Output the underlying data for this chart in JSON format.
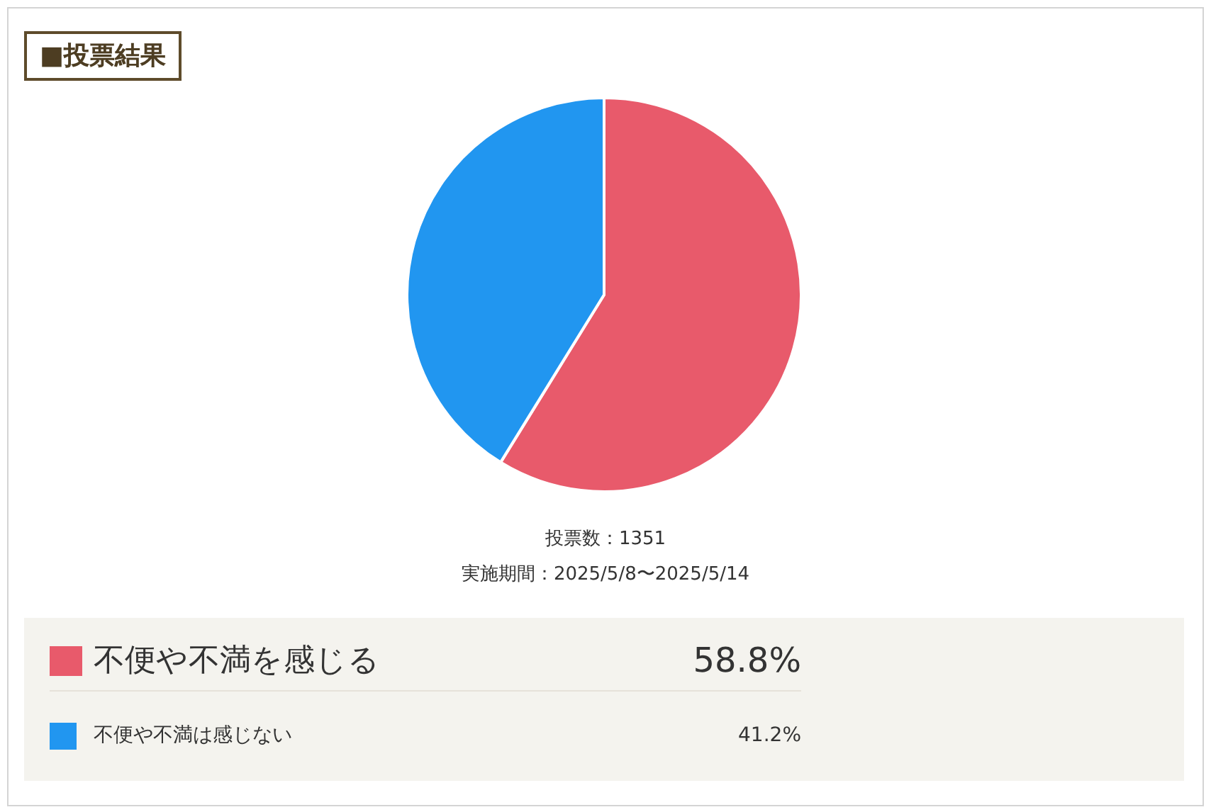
{
  "chart_data": {
    "type": "pie",
    "title": "■投票結果",
    "categories": [
      "不便や不満を感じる",
      "不便や不満は感じない"
    ],
    "values": [
      58.8,
      41.2
    ],
    "colors": [
      "#e85a6b",
      "#2196f0"
    ],
    "value_labels": [
      "58.8%",
      "41.2%"
    ],
    "legend": "bottom",
    "annotations": [
      "投票数：1351",
      "実施期間：2025/5/8〜2025/5/14"
    ]
  }
}
